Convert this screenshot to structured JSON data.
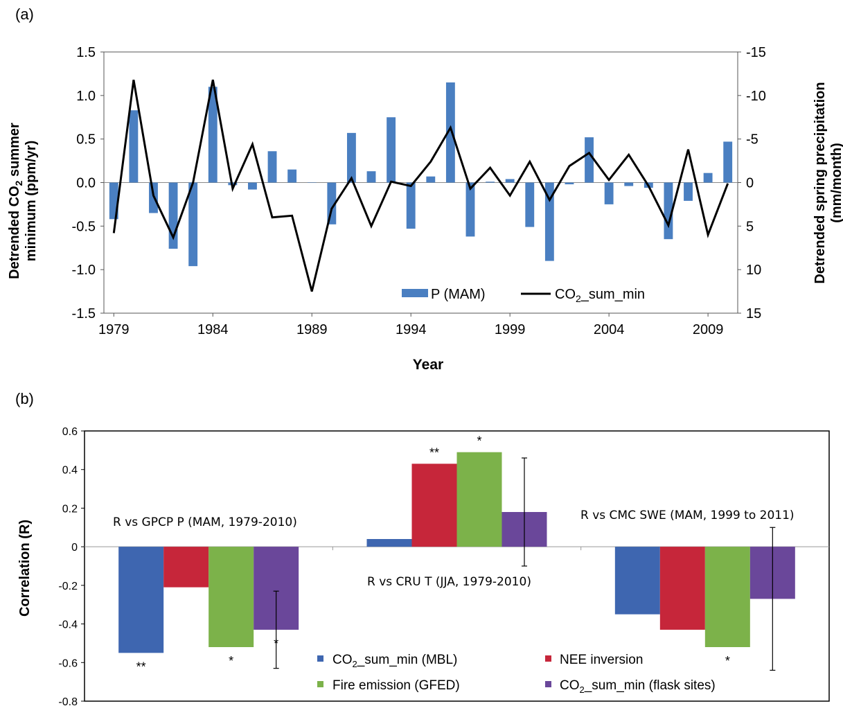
{
  "chart_data": [
    {
      "panel_label": "(a)",
      "type": "bar+line",
      "xlabel": "Year",
      "ylabel_left": "Detrended CO₂ summer minimum (ppm/yr)",
      "ylabel_left_parts": [
        "Detrended CO",
        "2",
        " summer",
        "minimum (ppm/yr)"
      ],
      "ylabel_right": "Detrended spring precipitation (mm/month)",
      "ylabel_right_lines": [
        "Detrended spring precipitation",
        "(mm/month)"
      ],
      "ylim_left": [
        -1.5,
        1.5
      ],
      "ylim_right": [
        15,
        -15
      ],
      "yticks_left": [
        "1.5",
        "1.0",
        "0.5",
        "0.0",
        "-0.5",
        "-1.0",
        "-1.5"
      ],
      "yticks_right": [
        "-15",
        "-10",
        "-5",
        "0",
        "5",
        "10",
        "15"
      ],
      "xticks": [
        "1979",
        "1984",
        "1989",
        "1994",
        "1999",
        "2004",
        "2009"
      ],
      "years": [
        1979,
        1980,
        1981,
        1982,
        1983,
        1984,
        1985,
        1986,
        1987,
        1988,
        1989,
        1990,
        1991,
        1992,
        1993,
        1994,
        1995,
        1996,
        1997,
        1998,
        1999,
        2000,
        2001,
        2002,
        2003,
        2004,
        2005,
        2006,
        2007,
        2008,
        2009,
        2010
      ],
      "series": [
        {
          "name": "P (MAM)",
          "kind": "bar",
          "axis": "right",
          "values": [
            4.2,
            -8.3,
            3.5,
            7.6,
            9.6,
            -11.0,
            0.3,
            0.8,
            -3.6,
            -1.5,
            0.0,
            4.8,
            -5.7,
            -1.3,
            -7.5,
            5.3,
            -0.7,
            -11.5,
            6.2,
            -0.1,
            -0.4,
            5.1,
            9.0,
            0.2,
            -5.2,
            2.5,
            0.4,
            0.6,
            6.5,
            2.1,
            -1.1,
            -4.7
          ]
        },
        {
          "name": "CO2_sum_min",
          "legend_parts": [
            "CO",
            "2",
            "_sum_min"
          ],
          "kind": "line",
          "axis": "left",
          "values": [
            -0.58,
            1.18,
            -0.15,
            -0.63,
            0.0,
            1.18,
            -0.07,
            0.44,
            -0.4,
            -0.38,
            -1.25,
            -0.3,
            0.05,
            -0.5,
            0.01,
            -0.04,
            0.24,
            0.63,
            -0.07,
            0.17,
            -0.15,
            0.24,
            -0.2,
            0.19,
            0.34,
            0.03,
            0.32,
            -0.04,
            -0.49,
            0.38,
            -0.6,
            -0.01
          ]
        }
      ],
      "colors": {
        "bar": "#4a7fc1",
        "line": "#000000"
      },
      "legend_position": "bottom-right"
    },
    {
      "panel_label": "(b)",
      "type": "bar",
      "ylabel": "Correlation (R)",
      "ylim": [
        -0.8,
        0.6
      ],
      "yticks": [
        "0.6",
        "0.4",
        "0.2",
        "0",
        "-0.2",
        "-0.4",
        "-0.6",
        "-0.8"
      ],
      "groups": [
        {
          "label": "R vs GPCP P (MAM, 1979-2010)",
          "values": [
            -0.55,
            -0.21,
            -0.52,
            -0.43
          ],
          "sig": [
            "**",
            "",
            "*",
            "*"
          ],
          "errorbar": {
            "series": 3,
            "low": -0.63,
            "high": -0.23
          }
        },
        {
          "label": "R vs CRU T (JJA, 1979-2010)",
          "values": [
            0.04,
            0.43,
            0.49,
            0.18
          ],
          "sig": [
            "",
            "**",
            "*",
            ""
          ],
          "errorbar": {
            "series": 3,
            "low": -0.1,
            "high": 0.46
          }
        },
        {
          "label": "R vs CMC SWE (MAM, 1999 to 2011)",
          "values": [
            -0.35,
            -0.43,
            -0.52,
            -0.27
          ],
          "sig": [
            "",
            "",
            "*",
            ""
          ],
          "errorbar": {
            "series": 3,
            "low": -0.64,
            "high": 0.1
          }
        }
      ],
      "series": [
        {
          "name": "CO2_sum_min (MBL)",
          "legend_parts": [
            "CO",
            "2",
            "_sum_min (MBL)"
          ],
          "color": "#3e66b0"
        },
        {
          "name": "NEE inversion",
          "legend_parts": [
            "NEE inversion",
            "",
            ""
          ],
          "color": "#c6263a"
        },
        {
          "name": "Fire emission (GFED)",
          "legend_parts": [
            "Fire emission (GFED)",
            "",
            ""
          ],
          "color": "#7cb24a"
        },
        {
          "name": "CO2_sum_min (flask sites)",
          "legend_parts": [
            "CO",
            "2",
            "_sum_min (flask sites)"
          ],
          "color": "#6a479a"
        }
      ],
      "legend_position": "bottom-center"
    }
  ]
}
